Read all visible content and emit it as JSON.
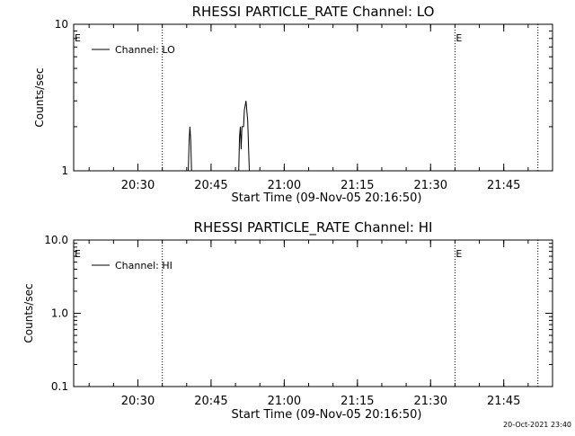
{
  "footer_timestamp": "20-Oct-2021 23:40",
  "chart_data": [
    {
      "type": "line",
      "title": "RHESSI PARTICLE_RATE Channel: LO",
      "xlabel": "Start Time (09-Nov-05 20:16:50)",
      "ylabel": "Counts/sec",
      "y_scale": "log",
      "ylim": [
        1,
        10
      ],
      "xlim": [
        "20:16:50",
        "21:55:00"
      ],
      "x_ticks": [
        "20:30",
        "20:45",
        "21:00",
        "21:15",
        "21:30",
        "21:45"
      ],
      "y_tick_labels": [
        "1",
        "10"
      ],
      "legend": {
        "placement": "top-left",
        "entries": [
          "Channel: LO"
        ]
      },
      "grid": false,
      "markers": [
        {
          "label": "E",
          "x": "20:16:50"
        },
        {
          "label": "",
          "x": "20:35:00"
        },
        {
          "label": "E",
          "x": "21:35:00"
        },
        {
          "label": "",
          "x": "21:52:00"
        }
      ],
      "series": [
        {
          "name": "Channel: LO",
          "points": [
            [
              "20:40:20",
              1.0
            ],
            [
              "20:40:30",
              1.6
            ],
            [
              "20:40:40",
              2.0
            ],
            [
              "20:40:50",
              1.6
            ],
            [
              "20:41:00",
              1.0
            ],
            [
              "20:50:40",
              1.0
            ],
            [
              "20:50:50",
              1.7
            ],
            [
              "20:51:00",
              2.0
            ],
            [
              "20:51:10",
              1.4
            ],
            [
              "20:51:20",
              2.0
            ],
            [
              "20:51:40",
              2.0
            ],
            [
              "20:51:50",
              2.6
            ],
            [
              "20:52:10",
              3.0
            ],
            [
              "20:52:30",
              2.2
            ],
            [
              "20:52:50",
              1.0
            ]
          ]
        }
      ]
    },
    {
      "type": "line",
      "title": "RHESSI PARTICLE_RATE Channel: HI",
      "xlabel": "Start Time (09-Nov-05 20:16:50)",
      "ylabel": "Counts/sec",
      "y_scale": "log",
      "ylim": [
        0.1,
        10
      ],
      "xlim": [
        "20:16:50",
        "21:55:00"
      ],
      "x_ticks": [
        "20:30",
        "20:45",
        "21:00",
        "21:15",
        "21:30",
        "21:45"
      ],
      "y_tick_labels": [
        "0.1",
        "1.0",
        "10.0"
      ],
      "legend": {
        "placement": "top-left",
        "entries": [
          "Channel: HI"
        ]
      },
      "grid": false,
      "markers": [
        {
          "label": "E",
          "x": "20:16:50"
        },
        {
          "label": "",
          "x": "20:35:00"
        },
        {
          "label": "E",
          "x": "21:35:00"
        },
        {
          "label": "",
          "x": "21:52:00"
        }
      ],
      "series": [
        {
          "name": "Channel: HI",
          "points": []
        }
      ]
    }
  ]
}
